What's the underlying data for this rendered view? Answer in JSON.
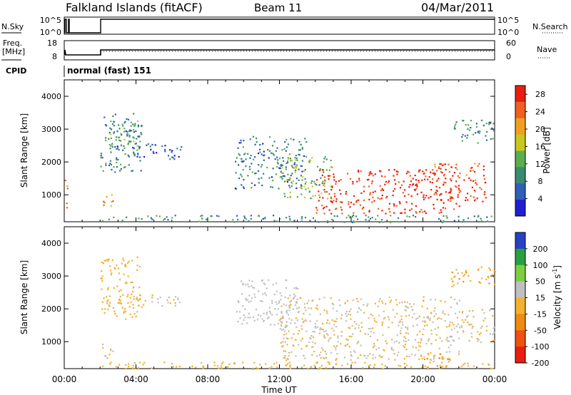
{
  "header": {
    "station": "Falkland Islands (fitACF)",
    "beam": "Beam 11",
    "date": "04/Mar/2011"
  },
  "small_panels": {
    "nsky_label": "N.Sky",
    "nsky_ticks": [
      "10^5",
      "10^0"
    ],
    "nsearch_label": "N.Search",
    "nsearch_ticks": [
      "10^5",
      "10^0"
    ],
    "freq_label": "Freq.",
    "freq_unit": "[MHz]",
    "freq_ticks": [
      "18",
      "8"
    ],
    "nave_label": "Nave",
    "nave_ticks": [
      "60",
      "0"
    ],
    "cpid_label": "CPID",
    "cpid_value": "normal (fast) 151"
  },
  "chart_data": [
    {
      "type": "heatmap",
      "title": "",
      "xlabel": "Time UT",
      "ylabel": "Slant Range [km]",
      "xlim": [
        0,
        24
      ],
      "ylim": [
        180,
        4500
      ],
      "x_ticks": [
        "00:00",
        "04:00",
        "08:00",
        "12:00",
        "16:00",
        "20:00",
        "00:00"
      ],
      "y_ticks": [
        1000,
        2000,
        3000,
        4000
      ],
      "colorbar": {
        "label": "Power [dB]",
        "ticks": [
          4,
          8,
          12,
          16,
          20,
          24,
          28
        ],
        "range": [
          0,
          30
        ]
      },
      "regions": [
        {
          "t0": 0.0,
          "t1": 0.15,
          "r0": 400,
          "r1": 1600,
          "value": 24
        },
        {
          "t0": 2.0,
          "t1": 2.7,
          "r0": 600,
          "r1": 1100,
          "value": 22
        },
        {
          "t0": 2.0,
          "t1": 4.3,
          "r0": 1700,
          "r1": 3500,
          "value": 8
        },
        {
          "t0": 2.5,
          "t1": 4.2,
          "r0": 2300,
          "r1": 3300,
          "value": 12
        },
        {
          "t0": 4.0,
          "t1": 6.5,
          "r0": 2100,
          "r1": 2600,
          "value": 6
        },
        {
          "t0": 9.5,
          "t1": 13.5,
          "r0": 1200,
          "r1": 2800,
          "value": 8
        },
        {
          "t0": 12.0,
          "t1": 15.0,
          "r0": 900,
          "r1": 2200,
          "value": 14
        },
        {
          "t0": 14.0,
          "t1": 22.0,
          "r0": 450,
          "r1": 1800,
          "value": 28
        },
        {
          "t0": 20.5,
          "t1": 23.5,
          "r0": 800,
          "r1": 2000,
          "value": 26
        },
        {
          "t0": 21.5,
          "t1": 24.0,
          "r0": 2600,
          "r1": 3300,
          "value": 10
        },
        {
          "t0": 2.0,
          "t1": 24.0,
          "r0": 180,
          "r1": 400,
          "value": 10
        }
      ]
    },
    {
      "type": "heatmap",
      "title": "",
      "xlabel": "Time UT",
      "ylabel": "Slant Range [km]",
      "xlim": [
        0,
        24
      ],
      "ylim": [
        180,
        4500
      ],
      "x_ticks": [
        "00:00",
        "04:00",
        "08:00",
        "12:00",
        "16:00",
        "20:00",
        "00:00"
      ],
      "y_ticks": [
        1000,
        2000,
        3000,
        4000
      ],
      "colorbar": {
        "label": "Velocity [m s^-1]",
        "ticks": [
          200,
          100,
          50,
          15,
          -15,
          -50,
          -100,
          -200
        ],
        "range": [
          -250,
          250
        ]
      },
      "regions": [
        {
          "t0": 2.0,
          "t1": 2.7,
          "r0": 500,
          "r1": 1000,
          "value": 0
        },
        {
          "t0": 2.0,
          "t1": 4.3,
          "r0": 1700,
          "r1": 3600,
          "value": -40
        },
        {
          "t0": 4.0,
          "t1": 6.5,
          "r0": 2100,
          "r1": 2500,
          "value": 0
        },
        {
          "t0": 9.5,
          "t1": 13.0,
          "r0": 1500,
          "r1": 2900,
          "value": 30
        },
        {
          "t0": 12.0,
          "t1": 22.0,
          "r0": 450,
          "r1": 2400,
          "value": 0
        },
        {
          "t0": 20.0,
          "t1": 21.5,
          "r0": 180,
          "r1": 700,
          "value": -60
        },
        {
          "t0": 21.5,
          "t1": 24.0,
          "r0": 2700,
          "r1": 3300,
          "value": -50
        },
        {
          "t0": 22.0,
          "t1": 24.0,
          "r0": 1000,
          "r1": 2000,
          "value": 0
        },
        {
          "t0": 2.0,
          "t1": 24.0,
          "r0": 180,
          "r1": 400,
          "value": -20
        }
      ]
    }
  ],
  "colors": {
    "power": [
      "#1f1fd0",
      "#2f5fb8",
      "#3a8a72",
      "#5aae4e",
      "#c8c81e",
      "#f0a020",
      "#f06020",
      "#e81e10"
    ],
    "velocity": [
      "#2840c8",
      "#28a040",
      "#7ad040",
      "#c0c0c0",
      "#f4b030",
      "#f08a10",
      "#f05010",
      "#e81e10"
    ]
  }
}
